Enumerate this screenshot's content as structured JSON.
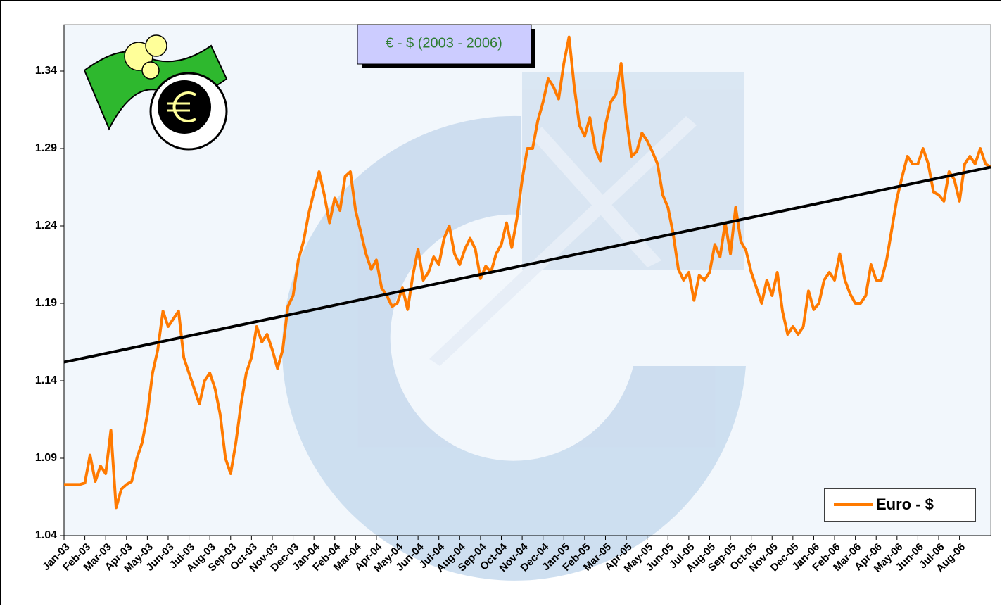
{
  "chart_data": {
    "type": "line",
    "title": "€ - $ (2003 - 2006)",
    "legend": "bottom-right",
    "xlim": [
      0,
      44.5
    ],
    "ylim": [
      1.04,
      1.37
    ],
    "yticks": [
      1.04,
      1.09,
      1.14,
      1.19,
      1.24,
      1.29,
      1.34
    ],
    "xticks": [
      {
        "value": 0,
        "label": "Jan-03"
      },
      {
        "value": 1,
        "label": "Feb-03"
      },
      {
        "value": 2,
        "label": "Mar-03"
      },
      {
        "value": 3,
        "label": "Apr-03"
      },
      {
        "value": 4,
        "label": "May-03"
      },
      {
        "value": 5,
        "label": "Jun-03"
      },
      {
        "value": 6,
        "label": "Jul-03"
      },
      {
        "value": 7,
        "label": "Aug-03"
      },
      {
        "value": 8,
        "label": "Sep-03"
      },
      {
        "value": 9,
        "label": "Oct-03"
      },
      {
        "value": 10,
        "label": "Nov-03"
      },
      {
        "value": 11,
        "label": "Dec-03"
      },
      {
        "value": 12,
        "label": "Jan-04"
      },
      {
        "value": 13,
        "label": "Feb-04"
      },
      {
        "value": 14,
        "label": "Mar-04"
      },
      {
        "value": 15,
        "label": "Apr-04"
      },
      {
        "value": 16,
        "label": "May-04"
      },
      {
        "value": 17,
        "label": "Jun-04"
      },
      {
        "value": 18,
        "label": "Jul-04"
      },
      {
        "value": 19,
        "label": "Aug-04"
      },
      {
        "value": 20,
        "label": "Sep-04"
      },
      {
        "value": 21,
        "label": "Oct-04"
      },
      {
        "value": 22,
        "label": "Nov-04"
      },
      {
        "value": 23,
        "label": "Dec-04"
      },
      {
        "value": 24,
        "label": "Jan-05"
      },
      {
        "value": 25,
        "label": "Feb-05"
      },
      {
        "value": 26,
        "label": "Mar-05"
      },
      {
        "value": 27,
        "label": "Apr-05"
      },
      {
        "value": 28,
        "label": "May-05"
      },
      {
        "value": 29,
        "label": "Jun-05"
      },
      {
        "value": 30,
        "label": "Jul-05"
      },
      {
        "value": 31,
        "label": "Aug-05"
      },
      {
        "value": 32,
        "label": "Sep-05"
      },
      {
        "value": 33,
        "label": "Oct-05"
      },
      {
        "value": 34,
        "label": "Nov-05"
      },
      {
        "value": 35,
        "label": "Dec-05"
      },
      {
        "value": 36,
        "label": "Jan-06"
      },
      {
        "value": 37,
        "label": "Feb-06"
      },
      {
        "value": 38,
        "label": "Mar-06"
      },
      {
        "value": 39,
        "label": "Apr-06"
      },
      {
        "value": 40,
        "label": "May-06"
      },
      {
        "value": 41,
        "label": "Jun-06"
      },
      {
        "value": 42,
        "label": "Jul-06"
      },
      {
        "value": 43,
        "label": "Aug-06"
      }
    ],
    "series": [
      {
        "name": "Euro - $",
        "color": "#ff7a00",
        "x": [
          0,
          0.25,
          0.5,
          0.75,
          1,
          1.25,
          1.5,
          1.75,
          2,
          2.25,
          2.5,
          2.75,
          3,
          3.25,
          3.5,
          3.75,
          4,
          4.25,
          4.5,
          4.75,
          5,
          5.25,
          5.5,
          5.75,
          6,
          6.25,
          6.5,
          6.75,
          7,
          7.25,
          7.5,
          7.75,
          8,
          8.25,
          8.5,
          8.75,
          9,
          9.25,
          9.5,
          9.75,
          10,
          10.25,
          10.5,
          10.75,
          11,
          11.25,
          11.5,
          11.75,
          12,
          12.25,
          12.5,
          12.75,
          13,
          13.25,
          13.5,
          13.75,
          14,
          14.25,
          14.5,
          14.75,
          15,
          15.25,
          15.5,
          15.75,
          16,
          16.25,
          16.5,
          16.75,
          17,
          17.25,
          17.5,
          17.75,
          18,
          18.25,
          18.5,
          18.75,
          19,
          19.25,
          19.5,
          19.75,
          20,
          20.25,
          20.5,
          20.75,
          21,
          21.25,
          21.5,
          21.75,
          22,
          22.25,
          22.5,
          22.75,
          23,
          23.25,
          23.5,
          23.75,
          24,
          24.25,
          24.5,
          24.75,
          25,
          25.25,
          25.5,
          25.75,
          26,
          26.25,
          26.5,
          26.75,
          27,
          27.25,
          27.5,
          27.75,
          28,
          28.25,
          28.5,
          28.75,
          29,
          29.25,
          29.5,
          29.75,
          30,
          30.25,
          30.5,
          30.75,
          31,
          31.25,
          31.5,
          31.75,
          32,
          32.25,
          32.5,
          32.75,
          33,
          33.25,
          33.5,
          33.75,
          34,
          34.25,
          34.5,
          34.75,
          35,
          35.25,
          35.5,
          35.75,
          36,
          36.25,
          36.5,
          36.75,
          37,
          37.25,
          37.5,
          37.75,
          38,
          38.25,
          38.5,
          38.75,
          39,
          39.25,
          39.5,
          39.75,
          40,
          40.25,
          40.5,
          40.75,
          41,
          41.25,
          41.5,
          41.75,
          42,
          42.25,
          42.5,
          42.75,
          43,
          43.25,
          43.5,
          43.75,
          44,
          44.25,
          44.5
        ],
        "values": [
          1.073,
          1.073,
          1.073,
          1.073,
          1.074,
          1.092,
          1.075,
          1.085,
          1.08,
          1.108,
          1.058,
          1.07,
          1.073,
          1.075,
          1.09,
          1.1,
          1.118,
          1.145,
          1.16,
          1.185,
          1.175,
          1.18,
          1.185,
          1.155,
          1.145,
          1.135,
          1.125,
          1.14,
          1.145,
          1.135,
          1.118,
          1.09,
          1.08,
          1.1,
          1.125,
          1.145,
          1.155,
          1.175,
          1.165,
          1.17,
          1.16,
          1.148,
          1.16,
          1.188,
          1.195,
          1.218,
          1.23,
          1.248,
          1.262,
          1.275,
          1.26,
          1.242,
          1.258,
          1.25,
          1.272,
          1.275,
          1.25,
          1.236,
          1.222,
          1.212,
          1.218,
          1.2,
          1.195,
          1.188,
          1.19,
          1.2,
          1.186,
          1.208,
          1.225,
          1.205,
          1.21,
          1.22,
          1.215,
          1.232,
          1.24,
          1.222,
          1.215,
          1.225,
          1.232,
          1.225,
          1.206,
          1.214,
          1.21,
          1.222,
          1.228,
          1.242,
          1.226,
          1.245,
          1.27,
          1.29,
          1.29,
          1.308,
          1.32,
          1.335,
          1.33,
          1.322,
          1.345,
          1.362,
          1.33,
          1.305,
          1.298,
          1.31,
          1.29,
          1.282,
          1.305,
          1.32,
          1.325,
          1.345,
          1.31,
          1.285,
          1.288,
          1.3,
          1.295,
          1.288,
          1.28,
          1.26,
          1.252,
          1.235,
          1.212,
          1.205,
          1.21,
          1.192,
          1.208,
          1.205,
          1.21,
          1.228,
          1.22,
          1.242,
          1.222,
          1.252,
          1.23,
          1.224,
          1.21,
          1.2,
          1.19,
          1.205,
          1.195,
          1.21,
          1.185,
          1.17,
          1.175,
          1.17,
          1.175,
          1.198,
          1.186,
          1.19,
          1.205,
          1.21,
          1.205,
          1.222,
          1.205,
          1.196,
          1.19,
          1.19,
          1.195,
          1.215,
          1.205,
          1.205,
          1.218,
          1.238,
          1.258,
          1.272,
          1.285,
          1.28,
          1.28,
          1.29,
          1.28,
          1.262,
          1.26,
          1.256,
          1.275,
          1.27,
          1.256,
          1.28,
          1.285,
          1.28,
          1.29,
          1.28,
          1.278
        ]
      }
    ],
    "trendline": {
      "color": "#000000",
      "x": [
        0,
        44.5
      ],
      "values": [
        1.152,
        1.278
      ]
    }
  }
}
